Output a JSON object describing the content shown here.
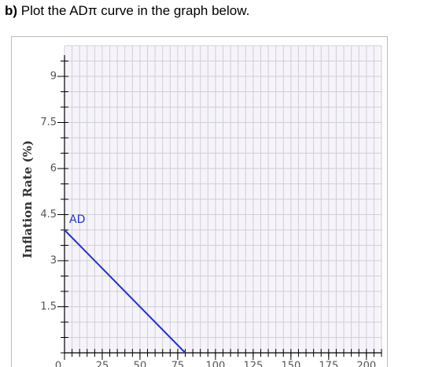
{
  "header": {
    "label": "b)",
    "text": "Plot the ADπ curve in the graph below."
  },
  "chart_data": {
    "type": "line",
    "y_label": "Inflation Rate (%)",
    "xlim": [
      0,
      210
    ],
    "ylim": [
      0,
      10
    ],
    "xticks": [
      0,
      25,
      50,
      75,
      100,
      125,
      150,
      175,
      200
    ],
    "yticks": [
      1.5,
      3,
      4.5,
      6,
      7.5,
      9
    ],
    "grid": true,
    "series": [
      {
        "name": "AD",
        "color": "#2233cc",
        "x": [
          0,
          80
        ],
        "values": [
          4,
          0
        ]
      }
    ]
  }
}
